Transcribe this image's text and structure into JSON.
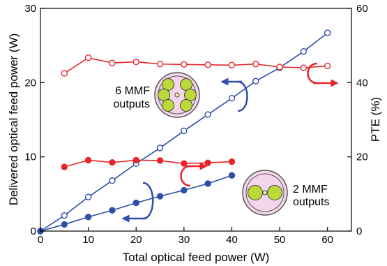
{
  "chart_data": {
    "type": "line",
    "xlabel": "Total optical feed power (W)",
    "ylabel_left": "Delivered optical feed power (W)",
    "ylabel_right": "PTE (%)",
    "xlim": [
      0,
      65
    ],
    "ylim_left": [
      0,
      30
    ],
    "ylim_right": [
      0,
      60
    ],
    "xticks": [
      0,
      10,
      20,
      30,
      40,
      50,
      60
    ],
    "yticks_left": [
      0,
      10,
      20,
      30
    ],
    "yticks_right": [
      0,
      20,
      40,
      60
    ],
    "grid": false,
    "series": [
      {
        "axis": "left",
        "color": "#2e4ea8",
        "marker": "open-circle",
        "x": [
          0,
          5,
          10,
          15,
          20,
          25,
          30,
          35,
          40,
          45,
          50,
          55,
          60
        ],
        "y": [
          0,
          2.1,
          4.6,
          6.8,
          9.1,
          11.2,
          13.5,
          15.7,
          17.9,
          20.2,
          22.0,
          24.2,
          26.7
        ]
      },
      {
        "axis": "left",
        "color": "#2e4ea8",
        "marker": "filled-circle",
        "x": [
          0,
          5,
          10,
          15,
          20,
          25,
          30,
          35,
          40
        ],
        "y": [
          0,
          0.9,
          1.9,
          2.8,
          3.8,
          4.7,
          5.5,
          6.4,
          7.5
        ]
      },
      {
        "axis": "right",
        "color": "#e8262a",
        "marker": "open-circle",
        "x": [
          5,
          10,
          15,
          20,
          25,
          30,
          35,
          40,
          45,
          50,
          55,
          60
        ],
        "y": [
          42.5,
          46.7,
          45.3,
          45.6,
          45.0,
          44.9,
          44.8,
          44.7,
          45.0,
          44.2,
          44.0,
          44.5
        ]
      },
      {
        "axis": "right",
        "color": "#e8262a",
        "marker": "filled-circle",
        "x": [
          5,
          10,
          15,
          20,
          25,
          30,
          35,
          40
        ],
        "y": [
          17.3,
          19.1,
          18.5,
          19.1,
          19.0,
          18.2,
          18.4,
          18.7
        ]
      }
    ],
    "annotations": [
      {
        "lines": [
          "6 MMF",
          "outputs"
        ],
        "icon": "6-core-fiber-cross-section"
      },
      {
        "lines": [
          "2 MMF",
          "outputs"
        ],
        "icon": "2-core-fiber-cross-section"
      }
    ]
  },
  "colors": {
    "blue": "#2e4ea8",
    "red": "#e8262a",
    "fiber_cladding": "#f4d6ea",
    "fiber_core": "#bcd93a"
  }
}
